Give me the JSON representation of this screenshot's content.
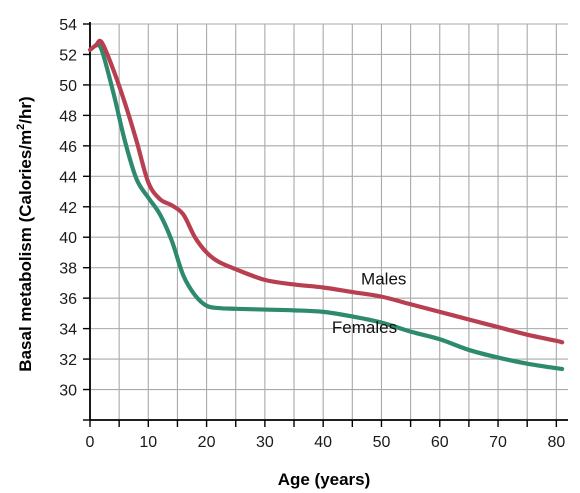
{
  "chart_data": {
    "type": "line",
    "xlabel": "Age (years)",
    "ylabel_prefix": "Basal metabolism (Calories/m",
    "ylabel_sup": "2",
    "ylabel_suffix": "/hr)",
    "xlim": [
      0,
      82
    ],
    "ylim": [
      28,
      54
    ],
    "x_ticks": [
      0,
      10,
      20,
      30,
      40,
      50,
      60,
      70,
      80
    ],
    "y_ticks": [
      30,
      32,
      34,
      36,
      38,
      40,
      42,
      44,
      46,
      48,
      50,
      52,
      54
    ],
    "grid": true,
    "series": [
      {
        "name": "Males",
        "color": "#b83f50",
        "x": [
          0,
          1,
          2,
          4,
          6,
          8,
          10,
          12,
          14,
          16,
          18,
          20,
          22,
          25,
          30,
          35,
          40,
          45,
          50,
          55,
          60,
          65,
          70,
          75,
          80,
          81
        ],
        "y": [
          52.3,
          52.6,
          52.8,
          51.0,
          48.8,
          46.3,
          43.6,
          42.5,
          42.1,
          41.5,
          40.0,
          39.0,
          38.4,
          37.9,
          37.2,
          36.9,
          36.7,
          36.4,
          36.1,
          35.6,
          35.1,
          34.6,
          34.1,
          33.6,
          33.2,
          33.1
        ]
      },
      {
        "name": "Females",
        "color": "#2e8a6e",
        "x": [
          1,
          2,
          4,
          6,
          8,
          10,
          12,
          14,
          16,
          18,
          20,
          22,
          25,
          30,
          35,
          40,
          45,
          50,
          55,
          60,
          65,
          70,
          75,
          80,
          81
        ],
        "y": [
          52.6,
          52.3,
          49.5,
          46.3,
          43.8,
          42.6,
          41.5,
          39.8,
          37.5,
          36.2,
          35.5,
          35.35,
          35.3,
          35.25,
          35.2,
          35.1,
          34.8,
          34.4,
          33.8,
          33.3,
          32.6,
          32.1,
          31.7,
          31.4,
          31.35
        ]
      }
    ],
    "labels": [
      {
        "series": "Males",
        "text": "Males",
        "x": 46.5,
        "y": 36.9
      },
      {
        "series": "Females",
        "text": "Females",
        "x": 41.5,
        "y": 33.7
      }
    ]
  }
}
